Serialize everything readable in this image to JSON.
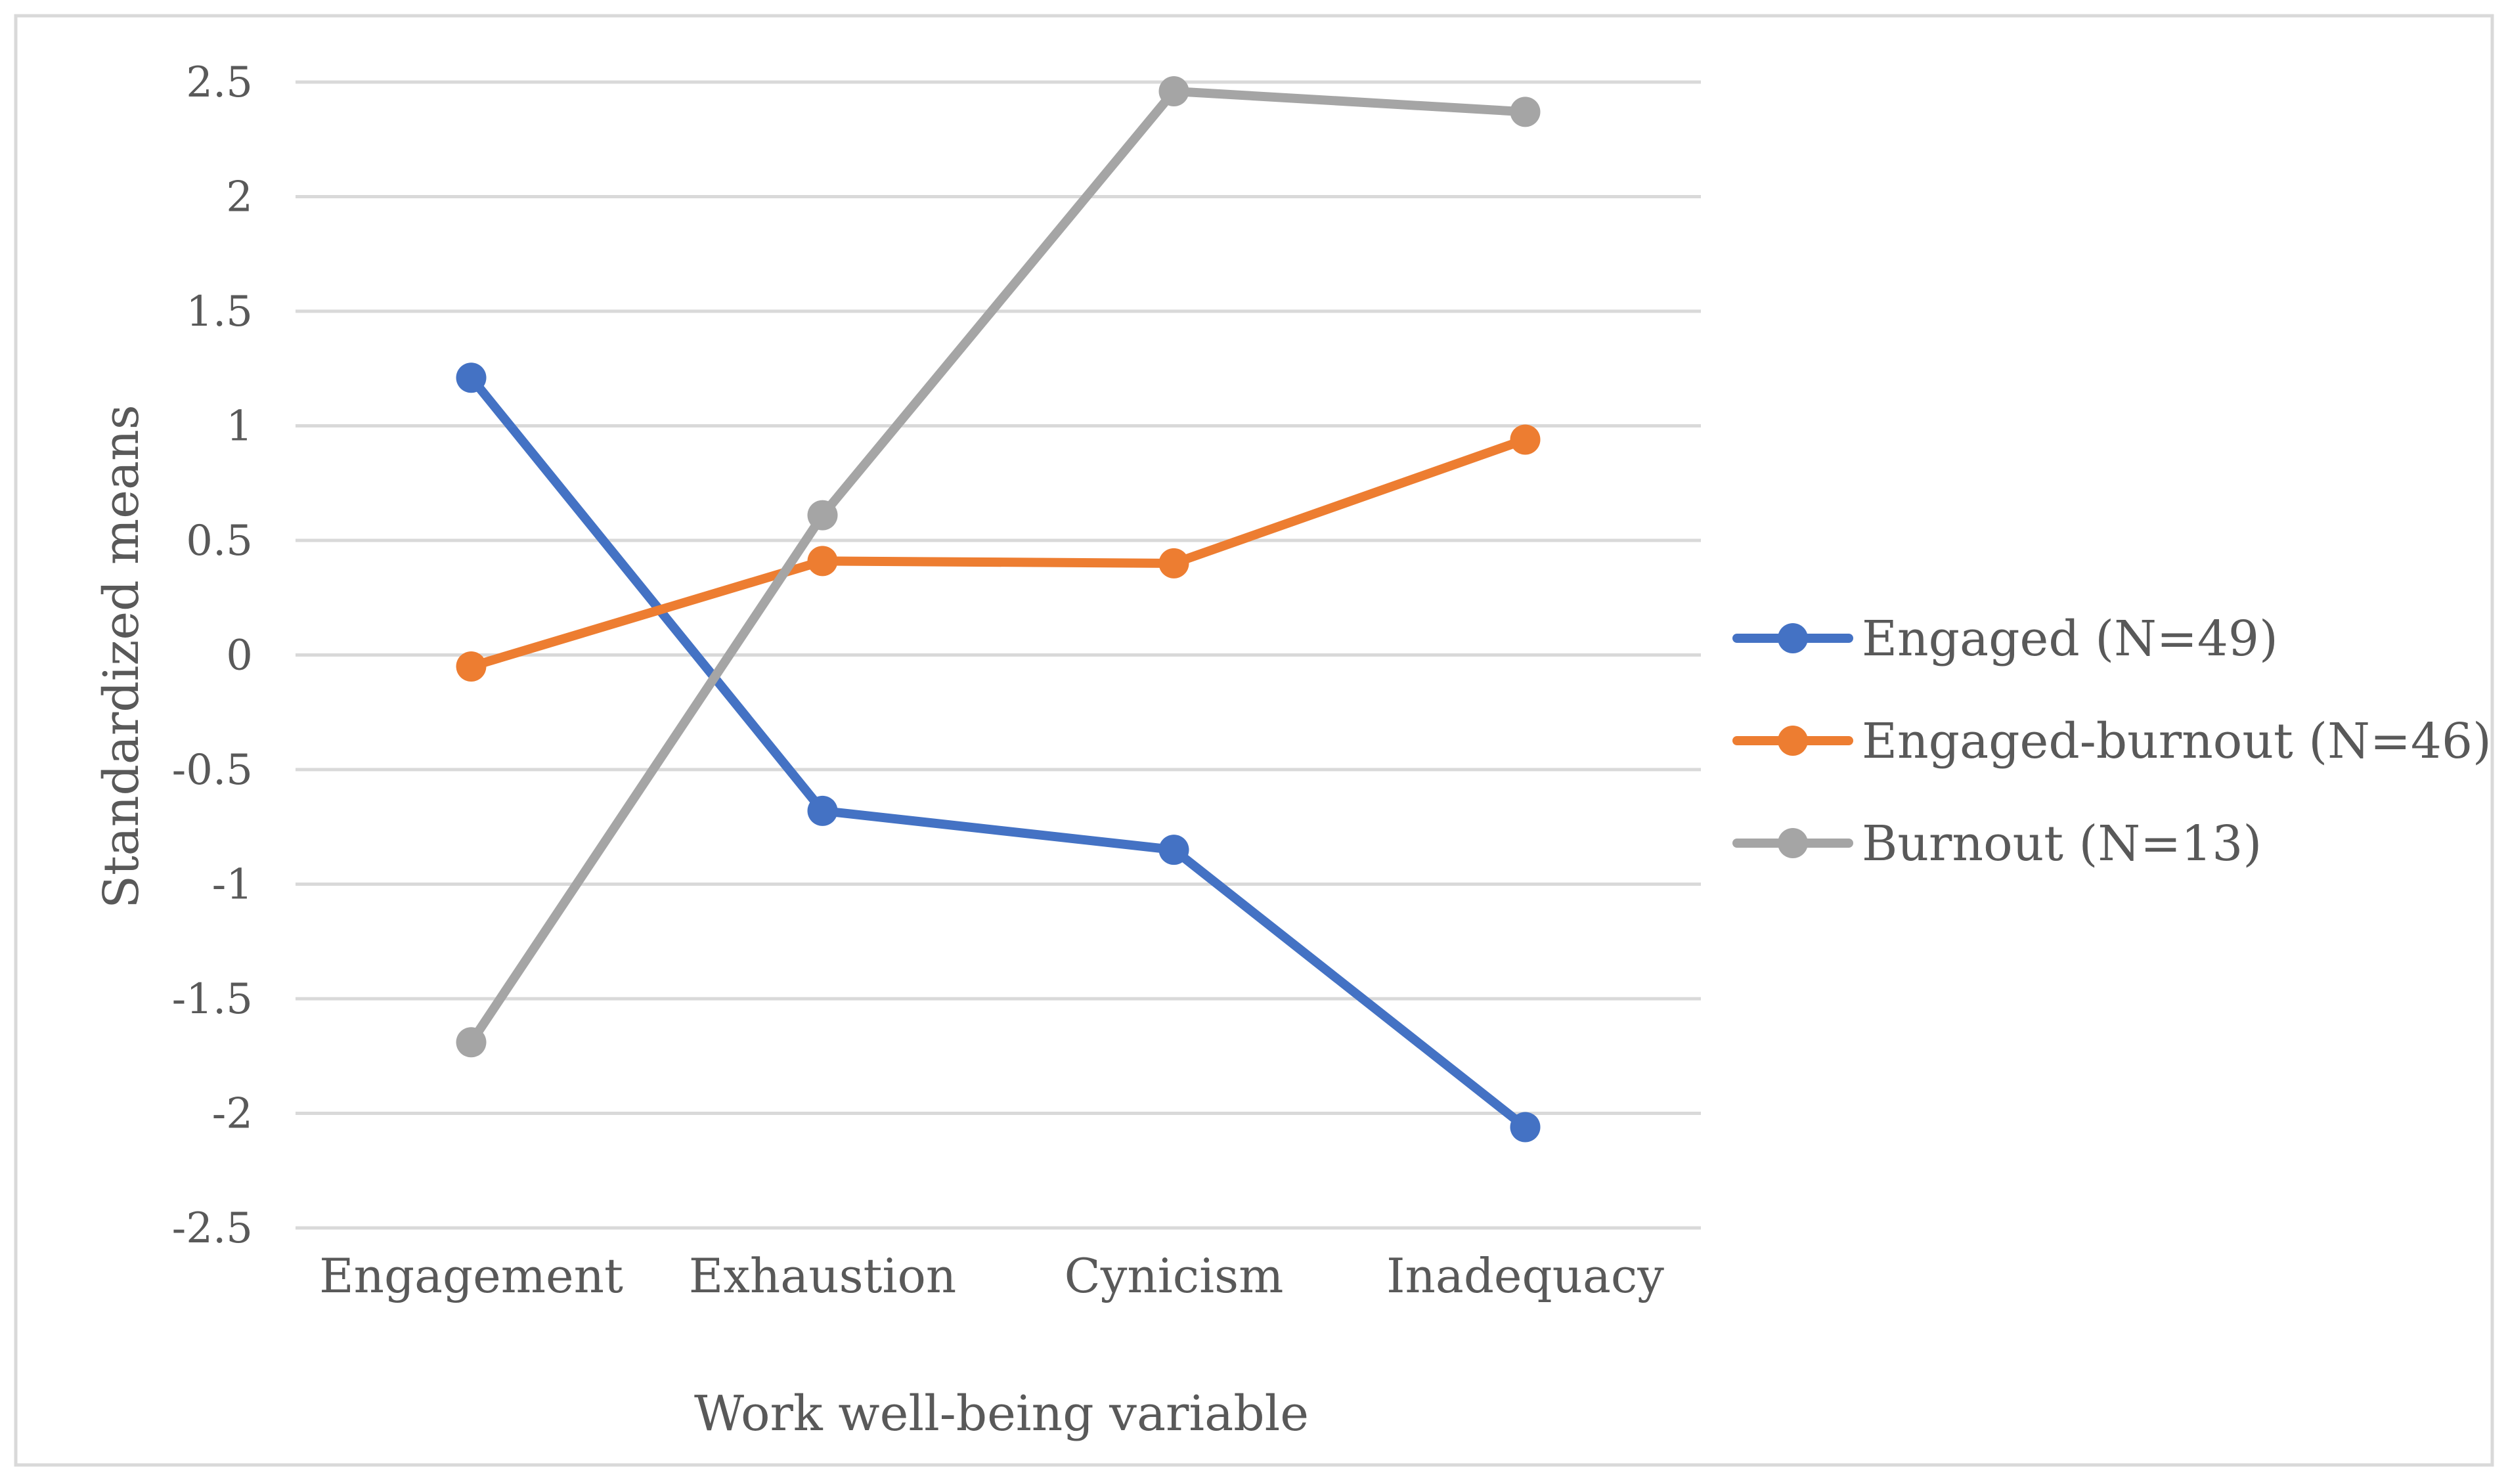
{
  "chart_data": {
    "type": "line",
    "title": "",
    "xlabel": "Work well-being variable",
    "ylabel": "Standardized means",
    "categories": [
      "Engagement",
      "Exhaustion",
      "Cynicism",
      "Inadequacy"
    ],
    "ylim": [
      -2.5,
      2.5
    ],
    "yticks": [
      2.5,
      2,
      1.5,
      1,
      0.5,
      0,
      -0.5,
      -1,
      -1.5,
      -2,
      -2.5
    ],
    "ytick_labels": [
      "2.5",
      "2",
      "1.5",
      "1",
      "0.5",
      "0",
      "-0.5",
      "-1",
      "-1.5",
      "-2",
      "-2.5"
    ],
    "grid": true,
    "legend_position": "right",
    "series": [
      {
        "name": "Engaged (N=49)",
        "color": "#4472C4",
        "values": [
          1.21,
          -0.68,
          -0.85,
          -2.06
        ]
      },
      {
        "name": "Engaged-burnout (N=46)",
        "color": "#ED7D31",
        "values": [
          -0.05,
          0.41,
          0.4,
          0.94
        ]
      },
      {
        "name": "Burnout (N=13)",
        "color": "#A5A5A5",
        "values": [
          -1.69,
          0.61,
          2.46,
          2.37
        ]
      }
    ]
  }
}
